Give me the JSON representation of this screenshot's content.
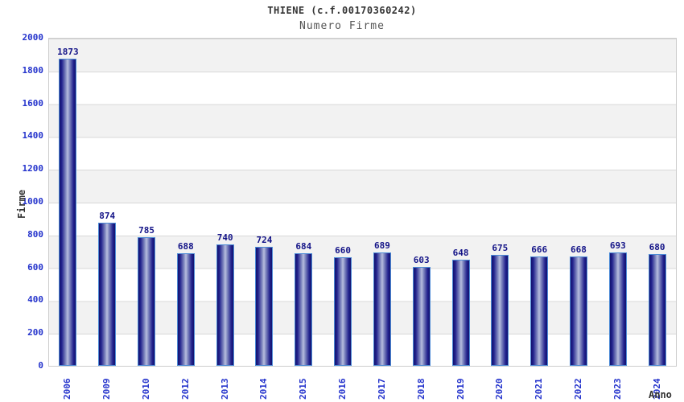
{
  "chart_data": {
    "type": "bar",
    "title": "THIENE (c.f.00170360242)",
    "subtitle": "Numero Firme",
    "xlabel": "Anno",
    "ylabel": "Firme",
    "categories": [
      "2006",
      "2009",
      "2010",
      "2012",
      "2013",
      "2014",
      "2015",
      "2016",
      "2017",
      "2018",
      "2019",
      "2020",
      "2021",
      "2022",
      "2023",
      "2024"
    ],
    "values": [
      1873,
      874,
      785,
      688,
      740,
      724,
      684,
      660,
      689,
      603,
      648,
      675,
      666,
      668,
      693,
      680
    ],
    "ylim": [
      0,
      2000
    ],
    "ytick_step": 200,
    "yticks": [
      0,
      200,
      400,
      600,
      800,
      1000,
      1200,
      1400,
      1600,
      1800,
      2000
    ],
    "grid": "horizontal gridlines every 200 with alternating gray/white bands",
    "legend": "none"
  },
  "colors": {
    "axis_tick_text": "#2433cc",
    "bar_value_text": "#131387",
    "title_text": "#333333",
    "subtitle_text": "#555555",
    "band_gray": "#f2f2f2",
    "gridline": "#d8d8d8",
    "plot_border": "#cccccc",
    "bar_border": "#4d8bd6",
    "bar_dark": "#12126e",
    "bar_light": "#b8bedf"
  }
}
